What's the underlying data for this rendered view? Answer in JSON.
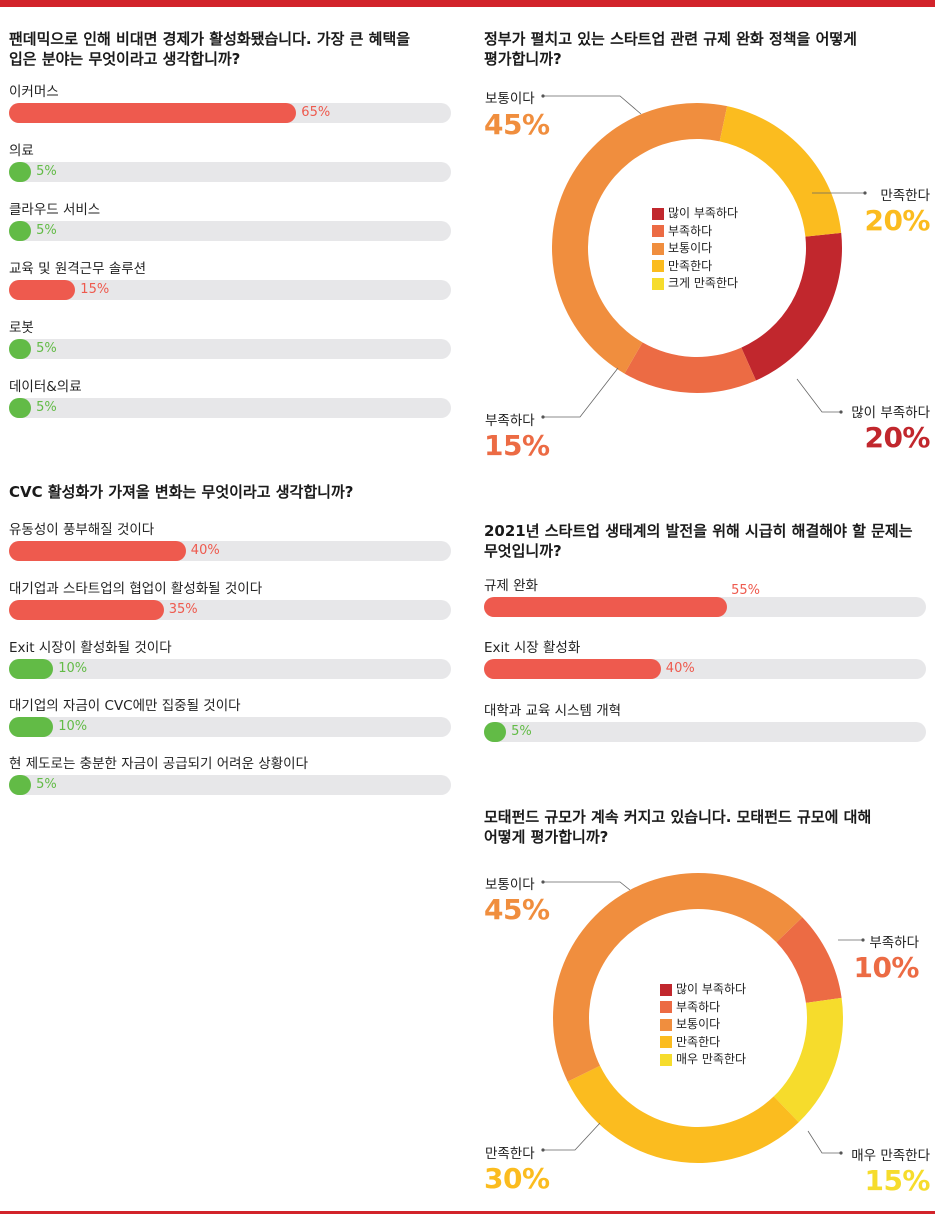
{
  "colors": {
    "red_bar": "#ee5a4e",
    "green_bar": "#62bb46",
    "track": "#e7e7e9",
    "donut_1": "#c1272d",
    "donut_2": "#ec6b44",
    "donut_3": "#f08e3e",
    "donut_4": "#fbbc1f",
    "donut_5": "#f6dc2c"
  },
  "chart_data": [
    {
      "type": "bar",
      "title": "팬데믹으로 인해 비대면 경제가 활성화됐습니다. 가장 큰 혜택을\n입은 분야는 무엇이라고 생각합니까?",
      "categories": [
        "이커머스",
        "의료",
        "클라우드 서비스",
        "교육 및 원격근무 솔루션",
        "로봇",
        "데이터&의료"
      ],
      "values": [
        65,
        5,
        5,
        15,
        5,
        5
      ],
      "value_labels": [
        "65%",
        "5%",
        "5%",
        "15%",
        "5%",
        "5%"
      ],
      "bar_colors": [
        "red",
        "green",
        "green",
        "red",
        "green",
        "green"
      ],
      "xlim": [
        0,
        100
      ]
    },
    {
      "type": "bar",
      "title": "CVC 활성화가 가져올 변화는 무엇이라고 생각합니까?",
      "categories": [
        "유동성이 풍부해질 것이다",
        "대기업과 스타트업의 협업이 활성화될 것이다",
        "Exit 시장이 활성화될 것이다",
        "대기업의 자금이 CVC에만 집중될 것이다",
        "현 제도로는 충분한 자금이 공급되기 어려운 상황이다"
      ],
      "values": [
        40,
        35,
        10,
        10,
        5
      ],
      "value_labels": [
        "40%",
        "35%",
        "10%",
        "10%",
        "5%"
      ],
      "bar_colors": [
        "red",
        "red",
        "green",
        "green",
        "green"
      ],
      "xlim": [
        0,
        100
      ]
    },
    {
      "type": "pie",
      "title": "정부가 펼치고 있는 스타트업 관련 규제 완화 정책을 어떻게\n평가합니까?",
      "legend": [
        "많이 부족하다",
        "부족하다",
        "보통이다",
        "만족한다",
        "크게 만족한다"
      ],
      "legend_colors": [
        "#c1272d",
        "#ec6b44",
        "#f08e3e",
        "#fbbc1f",
        "#f6dc2c"
      ],
      "slices": [
        {
          "label": "많이 부족하다",
          "value": 20,
          "value_label": "20%",
          "color": "#c1272d"
        },
        {
          "label": "부족하다",
          "value": 15,
          "value_label": "15%",
          "color": "#ec6b44"
        },
        {
          "label": "보통이다",
          "value": 45,
          "value_label": "45%",
          "color": "#f08e3e"
        },
        {
          "label": "만족한다",
          "value": 20,
          "value_label": "20%",
          "color": "#fbbc1f"
        }
      ]
    },
    {
      "type": "bar",
      "title": "2021년 스타트업 생태계의 발전을 위해 시급히 해결해야 할 문제는\n무엇입니까?",
      "categories": [
        "규제 완화",
        "Exit 시장 활성화",
        "대학과 교육 시스템 개혁"
      ],
      "values": [
        55,
        40,
        5
      ],
      "value_labels": [
        "55%",
        "40%",
        "5%"
      ],
      "bar_colors": [
        "red",
        "red",
        "green"
      ],
      "xlim": [
        0,
        100
      ]
    },
    {
      "type": "pie",
      "title": "모태펀드 규모가 계속 커지고 있습니다. 모태펀드 규모에 대해\n어떻게 평가합니까?",
      "legend": [
        "많이 부족하다",
        "부족하다",
        "보통이다",
        "만족한다",
        "매우 만족한다"
      ],
      "legend_colors": [
        "#c1272d",
        "#ec6b44",
        "#f08e3e",
        "#fbbc1f",
        "#f6dc2c"
      ],
      "slices": [
        {
          "label": "부족하다",
          "value": 10,
          "value_label": "10%",
          "color": "#ec6b44"
        },
        {
          "label": "매우 만족한다",
          "value": 15,
          "value_label": "15%",
          "color": "#f6dc2c"
        },
        {
          "label": "만족한다",
          "value": 30,
          "value_label": "30%",
          "color": "#fbbc1f"
        },
        {
          "label": "보통이다",
          "value": 45,
          "value_label": "45%",
          "color": "#f08e3e"
        }
      ]
    }
  ]
}
